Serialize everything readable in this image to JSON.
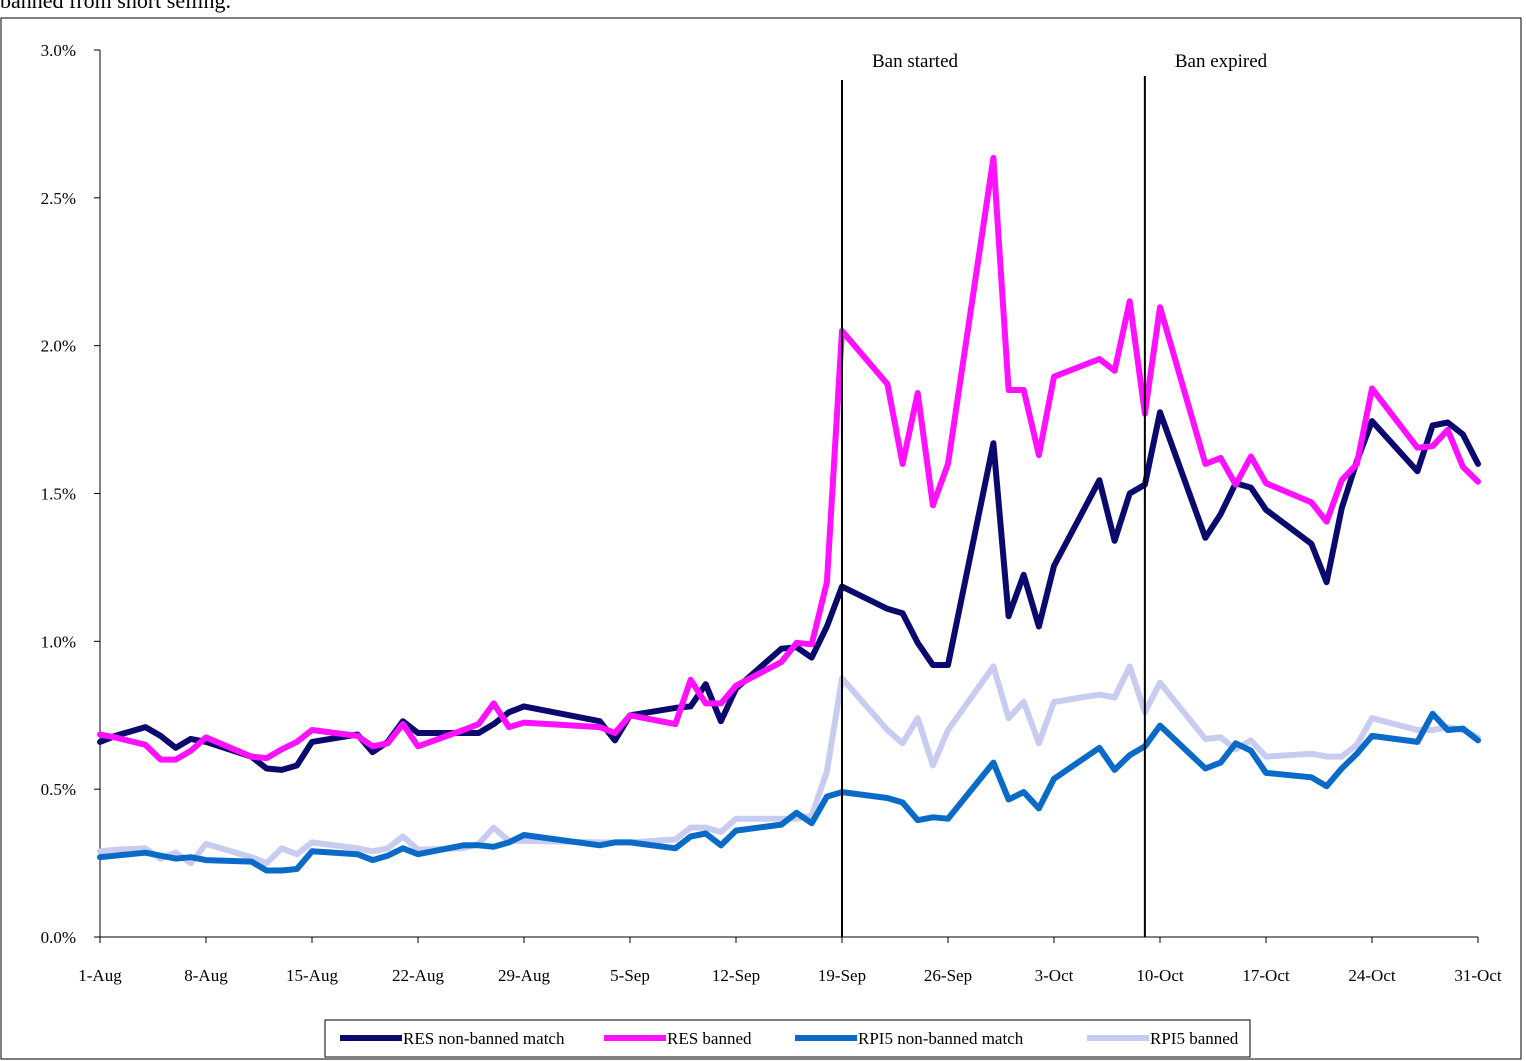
{
  "caption": "banned from short selling.",
  "colors": {
    "res_nonbanned": "#0a0a6e",
    "res_banned": "#ff10ff",
    "rpi_nonbanned": "#0a6ac8",
    "rpi_banned": "#c8ccf0"
  },
  "chart_data": {
    "type": "line",
    "x": [
      "1-Aug",
      "2-Aug",
      "4-Aug",
      "5-Aug",
      "6-Aug",
      "7-Aug",
      "8-Aug",
      "11-Aug",
      "12-Aug",
      "13-Aug",
      "14-Aug",
      "15-Aug",
      "18-Aug",
      "19-Aug",
      "20-Aug",
      "21-Aug",
      "22-Aug",
      "25-Aug",
      "26-Aug",
      "27-Aug",
      "28-Aug",
      "29-Aug",
      "3-Sep",
      "4-Sep",
      "5-Sep",
      "8-Sep",
      "9-Sep",
      "10-Sep",
      "11-Sep",
      "12-Sep",
      "15-Sep",
      "16-Sep",
      "17-Sep",
      "18-Sep",
      "19-Sep",
      "22-Sep",
      "23-Sep",
      "24-Sep",
      "25-Sep",
      "26-Sep",
      "29-Sep",
      "30-Sep",
      "1-Oct",
      "2-Oct",
      "3-Oct",
      "6-Oct",
      "7-Oct",
      "8-Oct",
      "9-Oct",
      "10-Oct",
      "13-Oct",
      "14-Oct",
      "15-Oct",
      "16-Oct",
      "17-Oct",
      "20-Oct",
      "21-Oct",
      "22-Oct",
      "23-Oct",
      "24-Oct",
      "27-Oct",
      "28-Oct",
      "29-Oct",
      "30-Oct",
      "31-Oct"
    ],
    "xticks": [
      "1-Aug",
      "8-Aug",
      "15-Aug",
      "22-Aug",
      "29-Aug",
      "5-Sep",
      "12-Sep",
      "19-Sep",
      "26-Sep",
      "3-Oct",
      "10-Oct",
      "17-Oct",
      "24-Oct",
      "31-Oct"
    ],
    "yticks": [
      "0.0%",
      "0.5%",
      "1.0%",
      "1.5%",
      "2.0%",
      "2.5%",
      "3.0%"
    ],
    "ylim": [
      0,
      3.0
    ],
    "series": [
      {
        "name": "RES non-banned match",
        "color_key": "res_nonbanned",
        "values": [
          0.66,
          0.68,
          0.71,
          0.68,
          0.64,
          0.67,
          0.66,
          0.61,
          0.57,
          0.565,
          0.58,
          0.66,
          0.685,
          0.625,
          0.66,
          0.73,
          0.69,
          0.69,
          0.69,
          0.72,
          0.76,
          0.78,
          0.73,
          0.665,
          0.75,
          0.775,
          0.78,
          0.855,
          0.73,
          0.84,
          0.975,
          0.98,
          0.945,
          1.05,
          1.185,
          1.11,
          1.095,
          0.995,
          0.92,
          0.92,
          1.67,
          1.085,
          1.225,
          1.05,
          1.255,
          1.545,
          1.34,
          1.5,
          1.53,
          1.775,
          1.35,
          1.43,
          1.535,
          1.52,
          1.445,
          1.33,
          1.2,
          1.45,
          1.61,
          1.745,
          1.575,
          1.73,
          1.74,
          1.7,
          1.6
        ]
      },
      {
        "name": "RES banned",
        "color_key": "res_banned",
        "values": [
          0.685,
          0.675,
          0.65,
          0.6,
          0.6,
          0.63,
          0.675,
          0.61,
          0.605,
          0.635,
          0.66,
          0.7,
          0.68,
          0.645,
          0.655,
          0.72,
          0.645,
          0.7,
          0.72,
          0.79,
          0.71,
          0.725,
          0.71,
          0.69,
          0.75,
          0.72,
          0.87,
          0.79,
          0.79,
          0.85,
          0.93,
          0.995,
          0.99,
          1.2,
          2.05,
          1.87,
          1.6,
          1.84,
          1.46,
          1.6,
          2.635,
          1.85,
          1.85,
          1.63,
          1.895,
          1.955,
          1.915,
          2.15,
          1.77,
          2.13,
          1.6,
          1.62,
          1.53,
          1.625,
          1.535,
          1.47,
          1.405,
          1.545,
          1.6,
          1.855,
          1.655,
          1.66,
          1.715,
          1.59,
          1.54
        ]
      },
      {
        "name": "RPI5 non-banned match",
        "color_key": "rpi_nonbanned",
        "values": [
          0.27,
          0.275,
          0.285,
          0.275,
          0.265,
          0.27,
          0.26,
          0.255,
          0.225,
          0.225,
          0.23,
          0.29,
          0.28,
          0.26,
          0.275,
          0.3,
          0.28,
          0.31,
          0.31,
          0.305,
          0.32,
          0.345,
          0.31,
          0.32,
          0.32,
          0.3,
          0.34,
          0.35,
          0.31,
          0.36,
          0.38,
          0.42,
          0.385,
          0.475,
          0.49,
          0.47,
          0.455,
          0.395,
          0.405,
          0.4,
          0.59,
          0.465,
          0.49,
          0.435,
          0.535,
          0.64,
          0.565,
          0.615,
          0.645,
          0.715,
          0.57,
          0.59,
          0.655,
          0.63,
          0.555,
          0.54,
          0.51,
          0.57,
          0.62,
          0.68,
          0.66,
          0.755,
          0.7,
          0.705,
          0.665
        ]
      },
      {
        "name": "RPI5 banned",
        "color_key": "rpi_banned",
        "values": [
          0.29,
          0.295,
          0.3,
          0.265,
          0.285,
          0.25,
          0.315,
          0.27,
          0.25,
          0.3,
          0.28,
          0.32,
          0.3,
          0.29,
          0.3,
          0.34,
          0.295,
          0.3,
          0.315,
          0.37,
          0.325,
          0.325,
          0.32,
          0.32,
          0.32,
          0.33,
          0.37,
          0.37,
          0.355,
          0.4,
          0.4,
          0.4,
          0.41,
          0.56,
          0.875,
          0.7,
          0.655,
          0.74,
          0.58,
          0.7,
          0.915,
          0.74,
          0.795,
          0.655,
          0.795,
          0.82,
          0.81,
          0.915,
          0.76,
          0.86,
          0.67,
          0.675,
          0.635,
          0.665,
          0.61,
          0.62,
          0.61,
          0.61,
          0.65,
          0.74,
          0.7,
          0.7,
          0.71,
          0.7,
          0.675
        ]
      }
    ],
    "annotations": [
      {
        "label": "Ban started",
        "x": "19-Sep"
      },
      {
        "label": "Ban expired",
        "x": "9-Oct"
      }
    ],
    "legend_position": "bottom",
    "grid": false
  }
}
